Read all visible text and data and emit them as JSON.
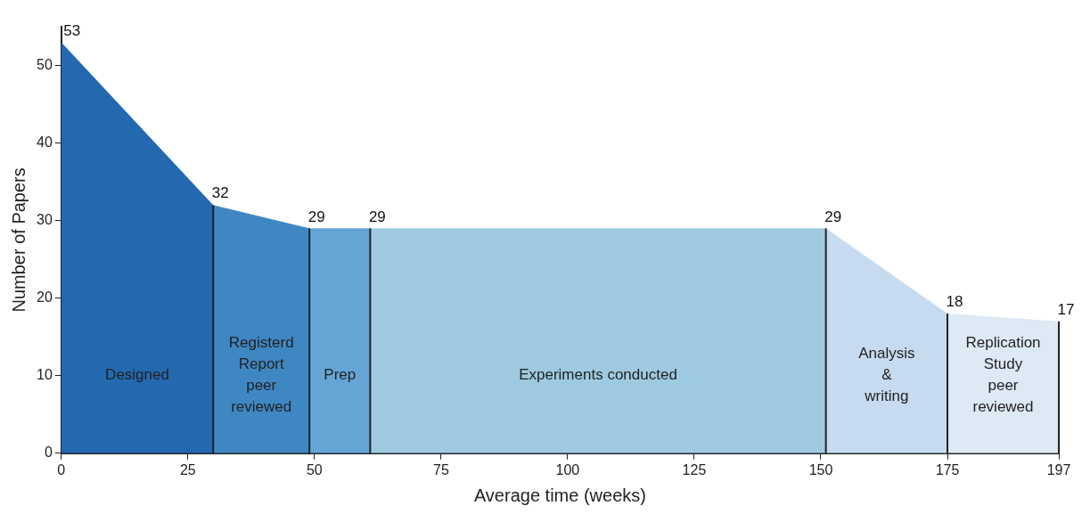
{
  "chart_data": {
    "type": "area",
    "xlabel": "Average time (weeks)",
    "ylabel": "Number of Papers",
    "xlim": [
      0,
      197
    ],
    "xticks": [
      0,
      25,
      50,
      75,
      100,
      125,
      150,
      175,
      197
    ],
    "ylim": [
      0,
      55
    ],
    "yticks": [
      0,
      10,
      20,
      30,
      40,
      50
    ],
    "grid": false,
    "legend": false,
    "marker": "none",
    "series": [
      {
        "name": "Designed",
        "color": "#2369b0",
        "x": [
          0,
          30
        ],
        "values": [
          53,
          32
        ],
        "value_labels": [
          "53",
          "32"
        ]
      },
      {
        "name": "Registerd\nReport\npeer\nreviewed",
        "color": "#3f87c3",
        "x": [
          30,
          49
        ],
        "values": [
          32,
          29
        ],
        "value_labels": [
          null,
          "29"
        ]
      },
      {
        "name": "Prep",
        "color": "#64a5d6",
        "x": [
          49,
          61
        ],
        "values": [
          29,
          29
        ],
        "value_labels": [
          null,
          "29"
        ]
      },
      {
        "name": "Experiments conducted",
        "color": "#9ecae1",
        "x": [
          61,
          151
        ],
        "values": [
          29,
          29
        ],
        "value_labels": [
          null,
          "29"
        ]
      },
      {
        "name": "Analysis\n&\nwriting",
        "color": "#c6dbef",
        "x": [
          151,
          175
        ],
        "values": [
          29,
          18
        ],
        "value_labels": [
          null,
          "18"
        ]
      },
      {
        "name": "Replication\nStudy\npeer\nreviewed",
        "color": "#dde9f5",
        "x": [
          175,
          197
        ],
        "values": [
          18,
          17
        ],
        "value_labels": [
          null,
          "17"
        ]
      }
    ]
  }
}
